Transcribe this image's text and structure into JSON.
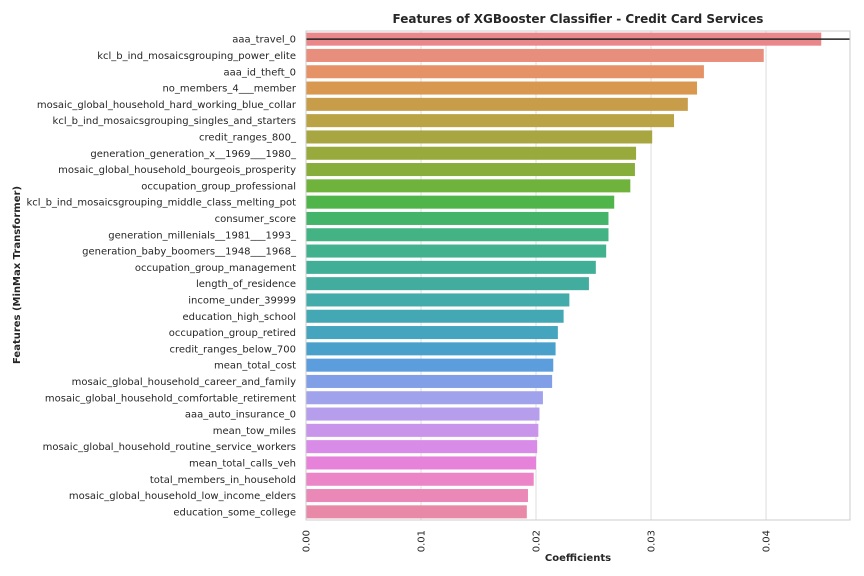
{
  "chart_data": {
    "type": "bar",
    "orientation": "horizontal",
    "title": "Features of XGBooster Classifier - Credit Card Services",
    "xlabel": "Coefficients",
    "ylabel": "Features (MinMax Transformer)",
    "xlim": [
      0,
      0.0473
    ],
    "xticks": [
      "0.00",
      "0.01",
      "0.02",
      "0.03",
      "0.04"
    ],
    "xtick_values": [
      0,
      0.01,
      0.02,
      0.03,
      0.04
    ],
    "grid": true,
    "reference_line": "horizontal black line across the first row",
    "categories": [
      "aaa_travel_0",
      "kcl_b_ind_mosaicsgrouping_power_elite",
      "aaa_id_theft_0",
      "no_members_4___member",
      "mosaic_global_household_hard_working_blue_collar",
      "kcl_b_ind_mosaicsgrouping_singles_and_starters",
      "credit_ranges_800_",
      "generation_generation_x__1969___1980_",
      "mosaic_global_household_bourgeois_prosperity",
      "occupation_group_professional",
      "kcl_b_ind_mosaicsgrouping_middle_class_melting_pot",
      "consumer_score",
      "generation_millenials__1981___1993_",
      "generation_baby_boomers__1948___1968_",
      "occupation_group_management",
      "length_of_residence",
      "income_under_39999",
      "education_high_school",
      "occupation_group_retired",
      "credit_ranges_below_700",
      "mean_total_cost",
      "mosaic_global_household_career_and_family",
      "mosaic_global_household_comfortable_retirement",
      "aaa_auto_insurance_0",
      "mean_tow_miles",
      "mosaic_global_household_routine_service_workers",
      "mean_total_calls_veh",
      "total_members_in_household",
      "mosaic_global_household_low_income_elders",
      "education_some_college"
    ],
    "values": [
      0.0448,
      0.0398,
      0.0346,
      0.034,
      0.0332,
      0.032,
      0.0301,
      0.0287,
      0.0286,
      0.0282,
      0.0268,
      0.0263,
      0.0263,
      0.0261,
      0.0252,
      0.0246,
      0.0229,
      0.0224,
      0.0219,
      0.0217,
      0.0215,
      0.0214,
      0.0206,
      0.0203,
      0.0202,
      0.0201,
      0.02,
      0.0198,
      0.0193,
      0.0192
    ],
    "colors": [
      "#e9878a",
      "#e78e7d",
      "#e59366",
      "#d9984f",
      "#c89d49",
      "#b9a345",
      "#a8a640",
      "#99aa3d",
      "#87ad3b",
      "#6fb33c",
      "#4fb54b",
      "#45b46b",
      "#43b383",
      "#42b18e",
      "#41af97",
      "#42ad9f",
      "#43abaa",
      "#44a8b4",
      "#45a5bf",
      "#48a0cb",
      "#5c9ddd",
      "#819fe7",
      "#a0a2ec",
      "#b79eed",
      "#c895ea",
      "#d88ce8",
      "#e782da",
      "#ec85c7",
      "#ea88b8",
      "#e88aa7"
    ]
  }
}
